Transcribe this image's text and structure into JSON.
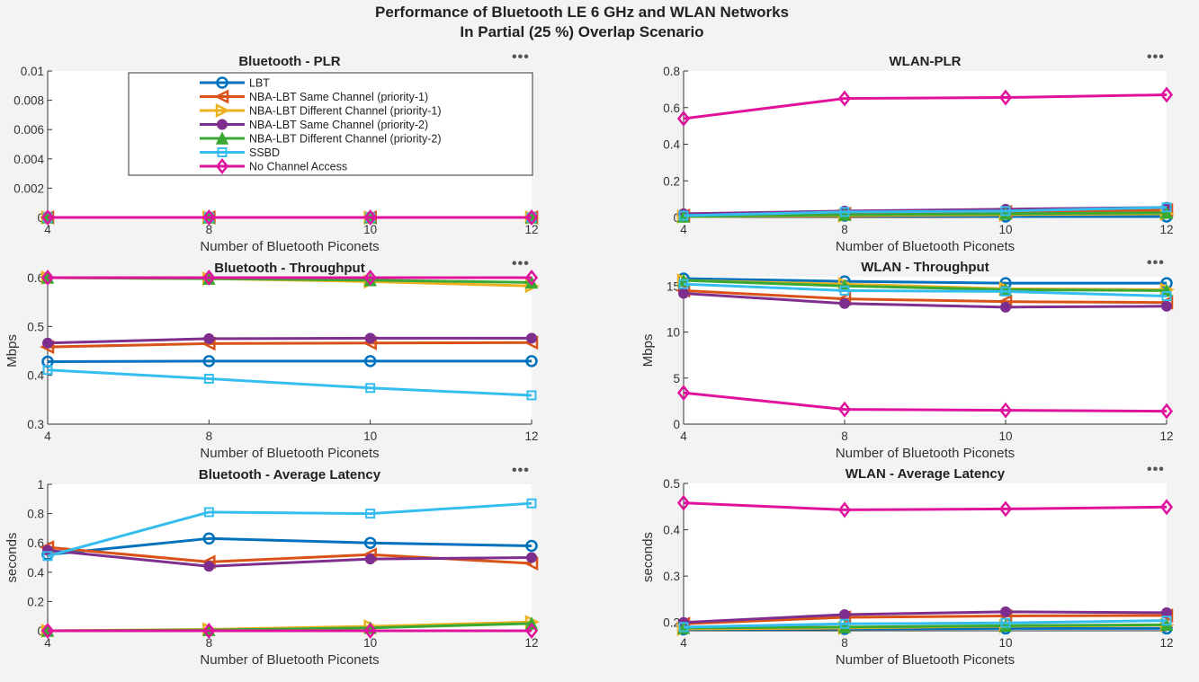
{
  "figure": {
    "title_line1": "Performance of Bluetooth LE 6 GHz and WLAN Networks",
    "title_line2": "In Partial (25 %) Overlap Scenario",
    "toolbar_icon": "more-options-icon",
    "toolbar_glyph": "•••"
  },
  "legend": {
    "entries": [
      {
        "name": "LBT",
        "color": "#0072BD",
        "marker": "circle"
      },
      {
        "name": "NBA-LBT Same Channel (priority-1)",
        "color": "#D95319",
        "marker": "triangle-left"
      },
      {
        "name": "NBA-LBT Different Channel (priority-1)",
        "color": "#EDB120",
        "marker": "triangle-right"
      },
      {
        "name": "NBA-LBT Same Channel (priority-2)",
        "color": "#7E2F8E",
        "marker": "filled-circle"
      },
      {
        "name": "NBA-LBT Different Channel (priority-2)",
        "color": "#3AA933",
        "marker": "filled-triangle-up"
      },
      {
        "name": "SSBD",
        "color": "#36BDEF",
        "marker": "square"
      },
      {
        "name": "No Channel Access",
        "color": "#E0139C",
        "marker": "diamond"
      }
    ]
  },
  "chart_data": [
    {
      "id": "bt-plr",
      "type": "line",
      "title": "Bluetooth - PLR",
      "xlabel": "Number of Bluetooth Piconets",
      "ylabel": "",
      "categories": [
        "4",
        "8",
        "10",
        "12"
      ],
      "ylim": [
        0,
        0.01
      ],
      "yticks": [
        0,
        0.002,
        0.004,
        0.006,
        0.008,
        0.01
      ],
      "ytick_labels": [
        "0",
        "0.002",
        "0.004",
        "0.006",
        "0.008",
        "0.01"
      ],
      "legend": "top-right",
      "grid": false,
      "series": [
        {
          "name": "LBT",
          "values": [
            0,
            0,
            0,
            0
          ]
        },
        {
          "name": "NBA-LBT Same Channel (priority-1)",
          "values": [
            0,
            0,
            0,
            0
          ]
        },
        {
          "name": "NBA-LBT Different Channel (priority-1)",
          "values": [
            0,
            0,
            0,
            0
          ]
        },
        {
          "name": "NBA-LBT Same Channel (priority-2)",
          "values": [
            0,
            0,
            0,
            0
          ]
        },
        {
          "name": "NBA-LBT Different Channel (priority-2)",
          "values": [
            0,
            0,
            0,
            0
          ]
        },
        {
          "name": "SSBD",
          "values": [
            0,
            0,
            0,
            0
          ]
        },
        {
          "name": "No Channel Access",
          "values": [
            0,
            0,
            0,
            0
          ]
        }
      ]
    },
    {
      "id": "wlan-plr",
      "type": "line",
      "title": "WLAN-PLR",
      "xlabel": "Number of Bluetooth Piconets",
      "ylabel": "",
      "categories": [
        "4",
        "8",
        "10",
        "12"
      ],
      "ylim": [
        0,
        0.8
      ],
      "yticks": [
        0,
        0.2,
        0.4,
        0.6,
        0.8
      ],
      "ytick_labels": [
        "0",
        "0.2",
        "0.4",
        "0.6",
        "0.8"
      ],
      "grid": false,
      "series": [
        {
          "name": "LBT",
          "values": [
            0.005,
            0.01,
            0.005,
            0.005
          ]
        },
        {
          "name": "NBA-LBT Same Channel (priority-1)",
          "values": [
            0.01,
            0.02,
            0.03,
            0.04
          ]
        },
        {
          "name": "NBA-LBT Different Channel (priority-1)",
          "values": [
            0.005,
            0.01,
            0.015,
            0.02
          ]
        },
        {
          "name": "NBA-LBT Same Channel (priority-2)",
          "values": [
            0.02,
            0.035,
            0.045,
            0.055
          ]
        },
        {
          "name": "NBA-LBT Different Channel (priority-2)",
          "values": [
            0.005,
            0.015,
            0.02,
            0.025
          ]
        },
        {
          "name": "SSBD",
          "values": [
            0.01,
            0.03,
            0.035,
            0.055
          ]
        },
        {
          "name": "No Channel Access",
          "values": [
            0.54,
            0.65,
            0.655,
            0.67
          ]
        }
      ]
    },
    {
      "id": "bt-throughput",
      "type": "line",
      "title": "Bluetooth - Throughput",
      "xlabel": "Number of Bluetooth Piconets",
      "ylabel": "Mbps",
      "categories": [
        "4",
        "8",
        "10",
        "12"
      ],
      "ylim": [
        0.3,
        0.6
      ],
      "yticks": [
        0.3,
        0.4,
        0.5,
        0.6
      ],
      "ytick_labels": [
        "0.3",
        "0.4",
        "0.5",
        "0.6"
      ],
      "grid": false,
      "series": [
        {
          "name": "LBT",
          "values": [
            0.428,
            0.429,
            0.429,
            0.429
          ]
        },
        {
          "name": "NBA-LBT Same Channel (priority-1)",
          "values": [
            0.458,
            0.465,
            0.466,
            0.467
          ]
        },
        {
          "name": "NBA-LBT Different Channel (priority-1)",
          "values": [
            0.6,
            0.598,
            0.592,
            0.583
          ]
        },
        {
          "name": "NBA-LBT Same Channel (priority-2)",
          "values": [
            0.466,
            0.475,
            0.476,
            0.476
          ]
        },
        {
          "name": "NBA-LBT Different Channel (priority-2)",
          "values": [
            0.6,
            0.598,
            0.595,
            0.59
          ]
        },
        {
          "name": "SSBD",
          "values": [
            0.411,
            0.393,
            0.374,
            0.359
          ]
        },
        {
          "name": "No Channel Access",
          "values": [
            0.6,
            0.6,
            0.6,
            0.6
          ]
        }
      ]
    },
    {
      "id": "wlan-throughput",
      "type": "line",
      "title": "WLAN - Throughput",
      "xlabel": "Number of Bluetooth Piconets",
      "ylabel": "Mbps",
      "categories": [
        "4",
        "8",
        "10",
        "12"
      ],
      "ylim": [
        0,
        16
      ],
      "yticks": [
        0,
        5,
        10,
        15
      ],
      "ytick_labels": [
        "0",
        "5",
        "10",
        "15"
      ],
      "grid": false,
      "series": [
        {
          "name": "LBT",
          "values": [
            15.8,
            15.5,
            15.3,
            15.3
          ]
        },
        {
          "name": "NBA-LBT Same Channel (priority-1)",
          "values": [
            14.5,
            13.6,
            13.3,
            13.2
          ]
        },
        {
          "name": "NBA-LBT Different Channel (priority-1)",
          "values": [
            15.6,
            15.2,
            14.7,
            14.6
          ]
        },
        {
          "name": "NBA-LBT Same Channel (priority-2)",
          "values": [
            14.2,
            13.1,
            12.7,
            12.8
          ]
        },
        {
          "name": "NBA-LBT Different Channel (priority-2)",
          "values": [
            15.6,
            15.0,
            14.6,
            14.5
          ]
        },
        {
          "name": "SSBD",
          "values": [
            15.2,
            14.5,
            14.4,
            13.9
          ]
        },
        {
          "name": "No Channel Access",
          "values": [
            3.4,
            1.6,
            1.5,
            1.4
          ]
        }
      ]
    },
    {
      "id": "bt-latency",
      "type": "line",
      "title": "Bluetooth - Average Latency",
      "xlabel": "Number of Bluetooth Piconets",
      "ylabel": "seconds",
      "categories": [
        "4",
        "8",
        "10",
        "12"
      ],
      "ylim": [
        0,
        1
      ],
      "yticks": [
        0,
        0.2,
        0.4,
        0.6,
        0.8,
        1
      ],
      "ytick_labels": [
        "0",
        "0.2",
        "0.4",
        "0.6",
        "0.8",
        "1"
      ],
      "grid": false,
      "series": [
        {
          "name": "LBT",
          "values": [
            0.52,
            0.63,
            0.6,
            0.58
          ]
        },
        {
          "name": "NBA-LBT Same Channel (priority-1)",
          "values": [
            0.57,
            0.47,
            0.52,
            0.46
          ]
        },
        {
          "name": "NBA-LBT Different Channel (priority-1)",
          "values": [
            0,
            0.01,
            0.03,
            0.06
          ]
        },
        {
          "name": "NBA-LBT Same Channel (priority-2)",
          "values": [
            0.55,
            0.44,
            0.49,
            0.5
          ]
        },
        {
          "name": "NBA-LBT Different Channel (priority-2)",
          "values": [
            0,
            0.005,
            0.02,
            0.05
          ]
        },
        {
          "name": "SSBD",
          "values": [
            0.51,
            0.81,
            0.8,
            0.87
          ]
        },
        {
          "name": "No Channel Access",
          "values": [
            0,
            0,
            0,
            0
          ]
        }
      ]
    },
    {
      "id": "wlan-latency",
      "type": "line",
      "title": "WLAN - Average Latency",
      "xlabel": "Number of Bluetooth Piconets",
      "ylabel": "seconds",
      "categories": [
        "4",
        "8",
        "10",
        "12"
      ],
      "ylim": [
        0.182,
        0.5
      ],
      "yticks": [
        0.2,
        0.3,
        0.4,
        0.5
      ],
      "ytick_labels": [
        "0.2",
        "0.3",
        "0.4",
        "0.5"
      ],
      "grid": false,
      "series": [
        {
          "name": "LBT",
          "values": [
            0.185,
            0.186,
            0.187,
            0.187
          ]
        },
        {
          "name": "NBA-LBT Same Channel (priority-1)",
          "values": [
            0.197,
            0.211,
            0.214,
            0.215
          ]
        },
        {
          "name": "NBA-LBT Different Channel (priority-1)",
          "values": [
            0.186,
            0.188,
            0.192,
            0.194
          ]
        },
        {
          "name": "NBA-LBT Same Channel (priority-2)",
          "values": [
            0.2,
            0.217,
            0.223,
            0.221
          ]
        },
        {
          "name": "NBA-LBT Different Channel (priority-2)",
          "values": [
            0.188,
            0.19,
            0.193,
            0.195
          ]
        },
        {
          "name": "SSBD",
          "values": [
            0.19,
            0.197,
            0.199,
            0.204
          ]
        },
        {
          "name": "No Channel Access",
          "values": [
            0.458,
            0.443,
            0.445,
            0.449
          ]
        }
      ]
    }
  ]
}
